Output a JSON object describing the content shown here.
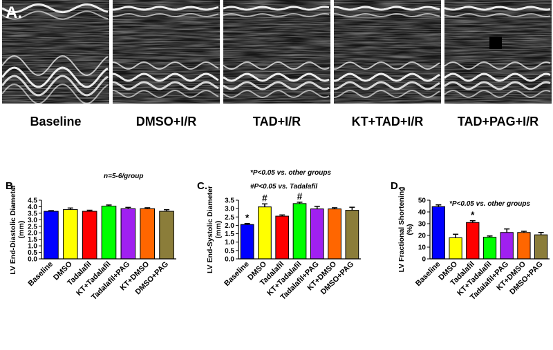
{
  "panel_label": "A.",
  "image_labels": [
    "Baseline",
    "DMSO+I/R",
    "TAD+I/R",
    "KT+TAD+I/R",
    "TAD+PAG+I/R"
  ],
  "chart_data": [
    {
      "type": "bar",
      "title": "B.",
      "annotations": [
        "n=5-6/group"
      ],
      "ylabel": [
        "LV End-Diastolic Diameter",
        "(mm)"
      ],
      "categories": [
        "Baseline",
        "DMSO",
        "Tadalafil",
        "KT+Tadalafil",
        "Tadalafil+PAG",
        "KT+DMSO",
        "DMSO+PAG"
      ],
      "values": [
        3.65,
        3.78,
        3.65,
        4.05,
        3.85,
        3.85,
        3.65
      ],
      "errors": [
        0.05,
        0.12,
        0.08,
        0.08,
        0.1,
        0.07,
        0.12
      ],
      "significance": [
        null,
        null,
        null,
        null,
        null,
        null,
        null
      ],
      "colors": [
        "#0000ff",
        "#ffff00",
        "#ff0000",
        "#00ff00",
        "#a020f0",
        "#ff6600",
        "#8b7d3a"
      ],
      "ylim": [
        0,
        4.5
      ],
      "yticks": [
        {
          "value": 0,
          "label": "0.0"
        },
        0.5,
        {
          "value": 1,
          "label": "1.0"
        },
        1.5,
        {
          "value": 2,
          "label": "2.0"
        },
        2.5,
        {
          "value": 3,
          "label": "3.0"
        },
        3.5,
        {
          "value": 4,
          "label": "4.0"
        },
        4.5
      ]
    },
    {
      "type": "bar",
      "title": "C.",
      "annotations": [
        "*P<0.05 vs. other groups",
        "#P<0.05 vs. Tadalafil"
      ],
      "ylabel": [
        "LV End-Systolic Diameter",
        "(mm)"
      ],
      "categories": [
        "Baseline",
        "DMSO",
        "Tadalafil",
        "KT+Tadalafil",
        "Tadalafil+PAG",
        "KT+DMSO",
        "DMSO+PAG"
      ],
      "values": [
        2.05,
        3.1,
        2.55,
        3.3,
        2.98,
        2.98,
        2.9
      ],
      "errors": [
        0.06,
        0.18,
        0.07,
        0.08,
        0.15,
        0.07,
        0.18
      ],
      "significance": [
        "*",
        "#",
        null,
        "#",
        null,
        null,
        null
      ],
      "colors": [
        "#0000ff",
        "#ffff00",
        "#ff0000",
        "#00ff00",
        "#a020f0",
        "#ff6600",
        "#8b7d3a"
      ],
      "ylim": [
        0,
        3.5
      ],
      "yticks": [
        {
          "value": 0,
          "label": "0.0"
        },
        0.5,
        {
          "value": 1,
          "label": "1.0"
        },
        1.5,
        {
          "value": 2,
          "label": "2.0"
        },
        2.5,
        {
          "value": 3,
          "label": "3.0"
        },
        3.5
      ]
    },
    {
      "type": "bar",
      "title": "D.",
      "annotations": [
        "*P<0.05 vs. other groups"
      ],
      "ylabel": [
        "LV Fractional Shortening",
        "(%)"
      ],
      "categories": [
        "Baseline",
        "DMSO",
        "Tadalafil",
        "KT+Tadalafil",
        "Tadalafil+PAG",
        "KT+DMSO",
        "DMSO+PAG"
      ],
      "values": [
        44.5,
        18,
        31,
        18.5,
        22.5,
        22.5,
        20.5
      ],
      "errors": [
        1.5,
        3,
        1.5,
        1,
        3,
        1,
        2
      ],
      "significance": [
        null,
        null,
        "*",
        null,
        null,
        null,
        null
      ],
      "colors": [
        "#0000ff",
        "#ffff00",
        "#ff0000",
        "#00ff00",
        "#a020f0",
        "#ff6600",
        "#8b7d3a"
      ],
      "ylim": [
        0,
        50
      ],
      "yticks": [
        0,
        10,
        20,
        30,
        40,
        50
      ]
    }
  ]
}
